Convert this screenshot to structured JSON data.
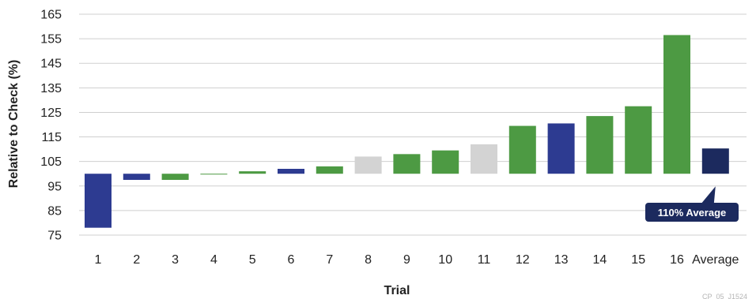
{
  "chart_data": {
    "type": "bar",
    "baseline": 100,
    "xlabel": "Trial",
    "ylabel": "Relative to Check (%)",
    "ylim": [
      75,
      165
    ],
    "yticks": [
      75,
      85,
      95,
      105,
      115,
      125,
      135,
      145,
      155,
      165
    ],
    "grid": true,
    "categories": [
      "1",
      "2",
      "3",
      "4",
      "5",
      "6",
      "7",
      "8",
      "9",
      "10",
      "11",
      "12",
      "13",
      "14",
      "15",
      "16",
      "Average"
    ],
    "values": [
      78,
      97.5,
      97.5,
      100,
      101,
      102,
      103,
      107,
      108,
      109.5,
      112,
      119.5,
      120.5,
      123.5,
      127.5,
      156.5,
      110.3
    ],
    "colors": [
      "#2d3b91",
      "#2d3b91",
      "#4d9a43",
      "#4d9a43",
      "#4d9a43",
      "#2d3b91",
      "#4d9a43",
      "#d3d3d3",
      "#4d9a43",
      "#4d9a43",
      "#d3d3d3",
      "#4d9a43",
      "#2d3b91",
      "#4d9a43",
      "#4d9a43",
      "#4d9a43",
      "#1c2a5e"
    ],
    "callout": {
      "text": "110% Average",
      "color": "#1c2a5e"
    },
    "footnote": "CP_05_J1524"
  }
}
